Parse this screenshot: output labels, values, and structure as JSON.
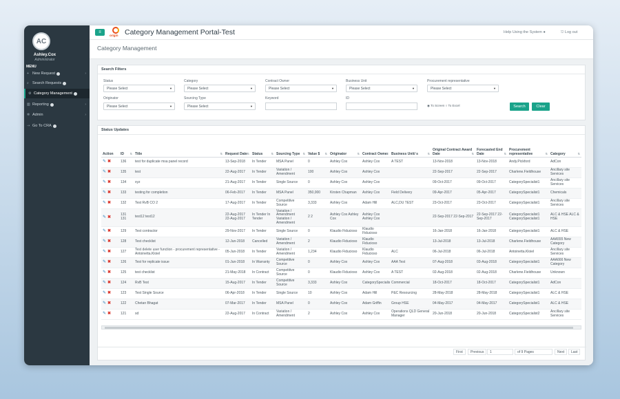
{
  "user": {
    "initials": "AC",
    "name": "Ashley.Cox",
    "role": "Administrator"
  },
  "menu": {
    "heading": "MENU",
    "items": [
      {
        "label": "New Request",
        "icon": "plus-icon",
        "badge": true,
        "chevron": "›"
      },
      {
        "label": "Search Requests",
        "icon": "search-icon",
        "badge": true,
        "chevron": ""
      },
      {
        "label": "Category Management",
        "icon": "gear-icon",
        "badge": true,
        "chevron": "",
        "active": true
      },
      {
        "label": "Reporting",
        "icon": "chart-icon",
        "badge": true,
        "chevron": "›"
      },
      {
        "label": "Admin",
        "icon": "cogs-icon",
        "badge": false,
        "chevron": "›"
      },
      {
        "label": "Go To CRA",
        "icon": "link-icon",
        "badge": true,
        "chevron": ""
      }
    ]
  },
  "header": {
    "app_title": "Category Management Portal-Test",
    "logo_text": "origin",
    "help_label": "Help Using the System",
    "logout_label": "Log out"
  },
  "page_title": "Category Management",
  "filters": {
    "title": "Search Filters",
    "status_label": "Status",
    "category_label": "Category",
    "contract_owner_label": "Contract Owner",
    "business_unit_label": "Business Unit",
    "procurement_label": "Procurement representative",
    "originator_label": "Originator",
    "sourcing_label": "Sourcing Type",
    "keyword_label": "Keyword",
    "id_label": "ID",
    "please_select": "Please Select",
    "to_screen": "To Screen",
    "to_excel": "To Excel",
    "search_btn": "Search",
    "clear_btn": "Clear"
  },
  "status_updates": {
    "title": "Status Updates",
    "columns": [
      "Action",
      "ID",
      "Title",
      "Request Date",
      "Status",
      "Sourcing Type",
      "Value $",
      "Originator",
      "Contract Owner",
      "Business Unit/ s",
      "Original Contract Award Date",
      "Forecasted End Date",
      "Procurement representative",
      "Category"
    ],
    "rows": [
      [
        "136",
        "test for duplicate msa panel record",
        "13-Sep-2018",
        "In Tender",
        "MSA Panel",
        "0",
        "Ashley Cox",
        "Ashley Cox",
        "A TEST",
        "13-Nov-2018",
        "13-Nov-2018",
        "Andy.Pickford",
        "AdCon"
      ],
      [
        "135",
        "test",
        "22-Aug-2017",
        "In Tender",
        "Variation / Amendment",
        "100",
        "Ashley Cox",
        "Ashley Cox",
        "",
        "22-Sep-2017",
        "22-Sep-2017",
        "Charlene.Fieldhouse",
        "Ancillary site Services"
      ],
      [
        "134",
        "xyz",
        "21-Aug-2017",
        "In Tender",
        "Single Source",
        "0",
        "Ashley Cox",
        "Ashley Cox",
        "",
        "09-Oct-2017",
        "09-Oct-2017",
        "CategorySpecialist1",
        "Ancillary site Services"
      ],
      [
        "133",
        "testing for completion",
        "06-Feb-2017",
        "In Tender",
        "MSA Panel",
        "350,000",
        "Kirsten Chapman",
        "Ashley Cox",
        "Field Delivery",
        "09-Apr-2017",
        "05-Apr-2017",
        "CategorySpecialist1",
        "Chemicals"
      ],
      [
        "132",
        "Test RvB CO 2",
        "17-Aug-2017",
        "In Tender",
        "Competitive Source",
        "3,333",
        "Ashley Cox",
        "Adam Hill",
        "ALC,DU TEST",
        "23-Oct-2017",
        "23-Oct-2017",
        "CategorySpecialist1",
        "Ancillary site Services"
      ],
      [
        "131 131",
        "test12 test12",
        "22-Aug-2017 22-Aug-2017",
        "In Tender In Tender",
        "Variation / Amendment Variation / Amendment",
        "2 2",
        "Ashley Cox Ashley Cox",
        "Ashley Cox Ashley Cox",
        "",
        "22-Sep-2017 22-Sep-2017",
        "22-Sep-2017 22-Sep-2017",
        "CategorySpecialist1 CategorySpecialist1",
        "ALC & HSE ALC & HSE"
      ],
      [
        "129",
        "Test contractor",
        "29-Nov-2017",
        "In Tender",
        "Single Source",
        "0",
        "Klaudio Fiducioso",
        "Klaudio Fiducioso",
        "",
        "16-Jan-2018",
        "16-Jan-2018",
        "CategorySpecialist1",
        "ALC & HSE"
      ],
      [
        "128",
        "Test checklist",
        "12-Jun-2018",
        "Cancelled",
        "Variation / Amendment",
        "2",
        "Klaudio Fiducioso",
        "Klaudio Fiducioso",
        "",
        "13-Jul-2018",
        "13-Jul-2018",
        "Charlene.Fieldhouse",
        "AAA555 New Category"
      ],
      [
        "127",
        "Test delete user function - procurement representative - Antoinetta.Kloiel",
        "05-Jun-2018",
        "In Tender",
        "Variation / Amendment",
        "1,234",
        "Klaudio Fiducioso",
        "Klaudio Fiducioso",
        "ALC",
        "06-Jul-2018",
        "06-Jul-2018",
        "Antoinetta.Kloiel",
        "Ancillary site Services"
      ],
      [
        "126",
        "Test for replicate issue",
        "01-Jun-2018",
        "In Warranty",
        "Competitive Source",
        "0",
        "Ashley Cox",
        "Ashley Cox",
        "AAA Test",
        "07-Aug-2018",
        "03-Aug-2018",
        "CategorySpecialist1",
        "AAA666 New Category"
      ],
      [
        "125",
        "test checklist",
        "21-May-2018",
        "In Contract",
        "Competitive Source",
        "0",
        "Klaudio Fiducioso",
        "Ashley Cox",
        "A TEST",
        "02-Aug-2018",
        "02-Aug-2018",
        "Charlene.Fieldhouse",
        "Unknown"
      ],
      [
        "124",
        "RvB Test",
        "15-Aug-2017",
        "In Tender",
        "Competitive Source",
        "3,333",
        "Ashley Cox",
        "CategorySpecialist1",
        "Commercial",
        "18-Oct-2017",
        "18-Oct-2017",
        "CategorySpecialist1",
        "AdCon"
      ],
      [
        "123",
        "Test Single Source",
        "06-Apr-2018",
        "In Tender",
        "Single Source",
        "10",
        "Ashley Cox",
        "Adam Hill",
        "P&C Resourcing",
        "28-May-2018",
        "28-May-2018",
        "CategorySpecialist1",
        "ALC & HSE"
      ],
      [
        "122",
        "Chetan Bhagat",
        "07-Mar-2017",
        "In Tender",
        "MSA Panel",
        "0",
        "Ashley Cox",
        "Adam Griffin",
        "Group HSE",
        "04-May-2017",
        "04-May-2017",
        "CategorySpecialist1",
        "ALC & HSE"
      ],
      [
        "121",
        "sd",
        "22-Aug-2017",
        "In Contract",
        "Variation / Amendment",
        "2",
        "Ashley Cox",
        "Ashley Cox",
        "Operations QLD General Manager",
        "20-Jun-2018",
        "20-Jun-2018",
        "CategorySpecialist2",
        "Ancillary site Services"
      ]
    ]
  },
  "pager": {
    "first": "First",
    "previous": "Previous",
    "page": "1",
    "of_pages": "of 9 Pages",
    "next": "Next",
    "last": "Last"
  }
}
